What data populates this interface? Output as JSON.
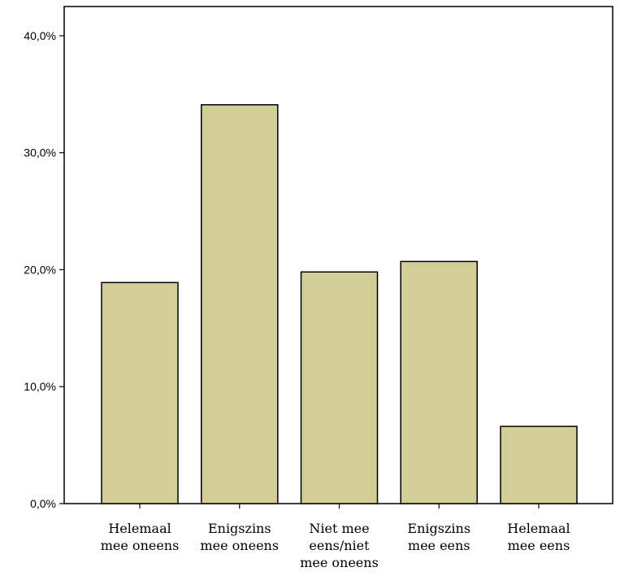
{
  "chart_data": {
    "type": "bar",
    "title": "",
    "xlabel": "",
    "ylabel": "",
    "categories": [
      [
        "Helemaal",
        "mee oneens"
      ],
      [
        "Enigszins",
        "mee oneens"
      ],
      [
        "Niet mee",
        "eens/niet",
        "mee oneens"
      ],
      [
        "Enigszins",
        "mee eens"
      ],
      [
        "Helemaal",
        "mee eens"
      ]
    ],
    "values": [
      18.9,
      34.1,
      19.8,
      20.7,
      6.6
    ],
    "ylim": [
      0,
      42.5
    ],
    "yticks": [
      0,
      10,
      20,
      30,
      40
    ],
    "ytick_labels": [
      "0,0%",
      "10,0%",
      "20,0%",
      "30,0%",
      "40,0%"
    ],
    "grid": false,
    "bar_color": "#d3cd98",
    "bar_edge_color": "#000000"
  }
}
